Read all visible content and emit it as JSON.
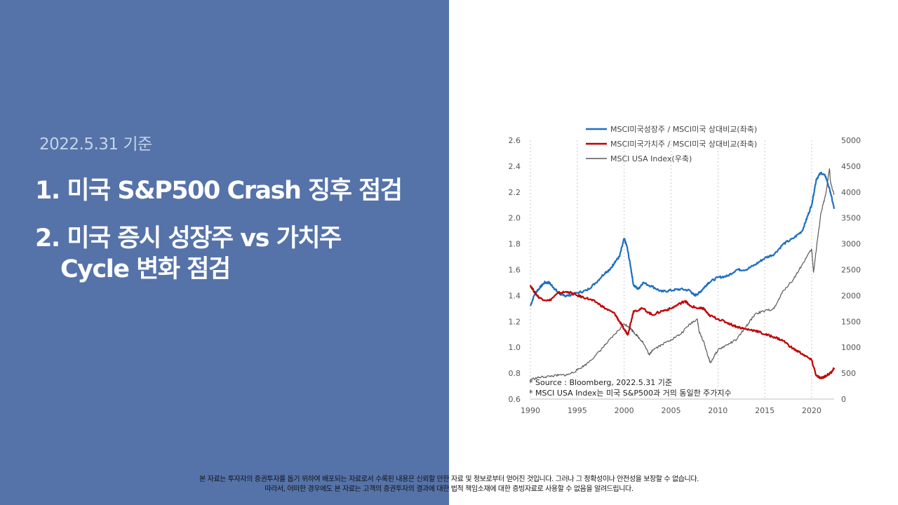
{
  "slide": {
    "date_label": "2022.5.31 기준",
    "items": [
      {
        "text": "1. 미국 S&P500 Crash 징후 점검"
      },
      {
        "text": "2. 미국 증시 성장주 vs 가치주",
        "continuation": "Cycle 변화 점검"
      }
    ],
    "disclaimer": [
      "본 자료는 투자자의 증권투자를 돕기 위하여 배포되는 자료로서 수록된 내용은 신뢰할 만한 자료 및 정보로부터 얻어진 것입니다. 그러나 그 정확성이나 안전성을 보장할 수 없습니다.",
      "따라서, 어떠한 경우에도 본 자료는 고객의 증권투자의 결과에 대한 법적 책임소재에 대한 증빙자료로 사용할 수 없음을 알려드립니다."
    ],
    "colors": {
      "panel": "#5573a9",
      "growth": "#1f6fbf",
      "value": "#c00000",
      "index": "#595959"
    }
  },
  "chart_data": {
    "type": "line",
    "x_ticks": [
      "1990",
      "1995",
      "2000",
      "2005",
      "2010",
      "2015",
      "2020"
    ],
    "xlim": [
      1990,
      2022.4
    ],
    "y_left_ticks": [
      "2.6",
      "2.4",
      "2.2",
      "2.0",
      "1.8",
      "1.6",
      "1.4",
      "1.2",
      "1.0",
      "0.8",
      "0.6"
    ],
    "ylim_left": [
      0.6,
      2.6
    ],
    "y_right_ticks": [
      "5000",
      "4500",
      "4000",
      "3500",
      "3000",
      "2500",
      "2000",
      "1500",
      "1000",
      "500",
      "0"
    ],
    "ylim_right": [
      0,
      5000
    ],
    "grid": "vertical dotted",
    "legend_position": "top",
    "series": [
      {
        "name": "MSCI미국성장주 / MSCI미국 상대비교(좌축)",
        "axis": "left",
        "x": [
          1990,
          1990.5,
          1991,
          1991.5,
          1992,
          1992.5,
          1993,
          1993.5,
          1994,
          1995,
          1996,
          1997,
          1998,
          1998.5,
          1999,
          1999.5,
          2000,
          2000.3,
          2000.7,
          2001,
          2001.5,
          2002,
          2003,
          2004,
          2005,
          2006,
          2007,
          2007.5,
          2008,
          2008.5,
          2009,
          2010,
          2011,
          2012,
          2013,
          2014,
          2015,
          2016,
          2017,
          2018,
          2019,
          2019.5,
          2020,
          2020.5,
          2021,
          2021.5,
          2022,
          2022.4
        ],
        "values": [
          1.32,
          1.42,
          1.46,
          1.5,
          1.5,
          1.46,
          1.42,
          1.4,
          1.4,
          1.42,
          1.44,
          1.5,
          1.58,
          1.6,
          1.66,
          1.7,
          1.84,
          1.78,
          1.62,
          1.48,
          1.45,
          1.5,
          1.47,
          1.43,
          1.44,
          1.45,
          1.44,
          1.4,
          1.42,
          1.46,
          1.5,
          1.54,
          1.55,
          1.6,
          1.6,
          1.64,
          1.69,
          1.72,
          1.8,
          1.84,
          1.9,
          2.0,
          2.1,
          2.3,
          2.35,
          2.32,
          2.2,
          2.07
        ]
      },
      {
        "name": "MSCI미국가치주 / MSCI미국 상대비교(좌축)",
        "axis": "left",
        "x": [
          1990,
          1990.5,
          1991,
          1992,
          1993,
          1994,
          1995,
          1996,
          1997,
          1998,
          1999,
          1999.5,
          2000,
          2000.4,
          2001,
          2002,
          2003,
          2004,
          2005,
          2006,
          2006.5,
          2007,
          2008,
          2008.5,
          2009,
          2010,
          2011,
          2012,
          2013,
          2014,
          2015,
          2016,
          2017,
          2018,
          2019,
          2020,
          2020.5,
          2021,
          2021.5,
          2022,
          2022.4
        ],
        "values": [
          1.48,
          1.42,
          1.38,
          1.36,
          1.42,
          1.43,
          1.4,
          1.38,
          1.35,
          1.3,
          1.26,
          1.2,
          1.14,
          1.1,
          1.28,
          1.3,
          1.25,
          1.28,
          1.3,
          1.34,
          1.36,
          1.32,
          1.3,
          1.3,
          1.25,
          1.22,
          1.19,
          1.16,
          1.14,
          1.13,
          1.1,
          1.08,
          1.05,
          0.99,
          0.95,
          0.9,
          0.78,
          0.76,
          0.78,
          0.8,
          0.84
        ]
      },
      {
        "name": "MSCI USA Index(우축)",
        "axis": "right",
        "x": [
          1990,
          1991,
          1992,
          1993,
          1994,
          1995,
          1996,
          1997,
          1998,
          1999,
          2000,
          2000.5,
          2001,
          2001.5,
          2002,
          2002.7,
          2003,
          2004,
          2005,
          2006,
          2007,
          2007.8,
          2008,
          2008.5,
          2009,
          2009.2,
          2010,
          2011,
          2012,
          2013,
          2014,
          2015,
          2016,
          2017,
          2018,
          2019,
          2020,
          2020.2,
          2020.6,
          2021,
          2021.5,
          2021.9,
          2022,
          2022.4
        ],
        "values": [
          380,
          420,
          440,
          460,
          470,
          560,
          680,
          850,
          1050,
          1250,
          1450,
          1400,
          1300,
          1200,
          1100,
          850,
          950,
          1050,
          1150,
          1250,
          1450,
          1550,
          1300,
          1100,
          800,
          700,
          950,
          1050,
          1150,
          1400,
          1650,
          1700,
          1750,
          2100,
          2300,
          2600,
          2900,
          2450,
          3050,
          3600,
          3950,
          4450,
          4200,
          3950
        ]
      }
    ],
    "annotations": [
      "* Source : Bloomberg, 2022.5.31 기준",
      "* MSCI USA Index는 미국 S&P500과 거의 동일한 주가지수"
    ]
  }
}
